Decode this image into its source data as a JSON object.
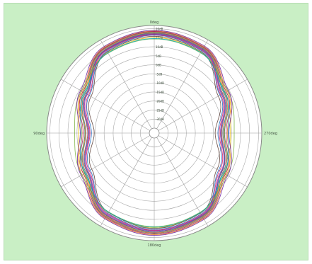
{
  "chart_data": {
    "type": "polar-line",
    "title": "",
    "angle_labels": [
      {
        "text": "0deg",
        "angle": 0
      },
      {
        "text": "90deg",
        "angle": 90
      },
      {
        "text": "180deg",
        "angle": 180
      },
      {
        "text": "270deg",
        "angle": 270
      }
    ],
    "radial_labels": [
      "-30dB",
      "-25dB",
      "-20dB",
      "-15dB",
      "-10dB",
      "-5dB",
      "0dB",
      "5dB",
      "10dB",
      "15dB",
      "20dB"
    ],
    "radial_range": [
      -35,
      20
    ],
    "angle_step_deg": 30,
    "grid": true,
    "colors": [
      "#c0392b",
      "#2e7d32",
      "#1565c0",
      "#e67e22",
      "#8e24aa",
      "#f1c40f",
      "#00838f",
      "#ad1457",
      "#5d4037",
      "#3949ab",
      "#7cb342",
      "#ff7043",
      "#6a1b9a",
      "#00acc1",
      "#d81b60"
    ],
    "series": [
      {
        "points": [
          [
            0,
            15.8
          ],
          [
            30,
            14.2
          ],
          [
            60,
            4.5
          ],
          [
            90,
            -2.0
          ],
          [
            120,
            4.0
          ],
          [
            150,
            13.5
          ],
          [
            180,
            15.2
          ],
          [
            210,
            13.8
          ],
          [
            240,
            4.2
          ],
          [
            270,
            -1.5
          ],
          [
            300,
            4.8
          ],
          [
            330,
            14.5
          ]
        ]
      },
      {
        "points": [
          [
            0,
            16.5
          ],
          [
            30,
            15.0
          ],
          [
            60,
            6.0
          ],
          [
            90,
            -0.5
          ],
          [
            120,
            5.5
          ],
          [
            150,
            14.2
          ],
          [
            180,
            16.0
          ],
          [
            210,
            14.5
          ],
          [
            240,
            5.8
          ],
          [
            270,
            0.0
          ],
          [
            300,
            6.2
          ],
          [
            330,
            15.2
          ]
        ]
      },
      {
        "points": [
          [
            0,
            14.8
          ],
          [
            30,
            13.0
          ],
          [
            60,
            2.5
          ],
          [
            90,
            -4.0
          ],
          [
            120,
            2.0
          ],
          [
            150,
            12.0
          ],
          [
            180,
            14.0
          ],
          [
            210,
            12.5
          ],
          [
            240,
            2.2
          ],
          [
            270,
            -3.5
          ],
          [
            300,
            3.0
          ],
          [
            330,
            13.2
          ]
        ]
      },
      {
        "points": [
          [
            0,
            17.0
          ],
          [
            30,
            15.6
          ],
          [
            60,
            7.2
          ],
          [
            90,
            1.0
          ],
          [
            120,
            7.0
          ],
          [
            150,
            15.0
          ],
          [
            180,
            16.8
          ],
          [
            210,
            15.4
          ],
          [
            240,
            7.0
          ],
          [
            270,
            1.5
          ],
          [
            300,
            7.5
          ],
          [
            330,
            15.8
          ]
        ]
      },
      {
        "points": [
          [
            0,
            15.2
          ],
          [
            30,
            13.8
          ],
          [
            60,
            3.8
          ],
          [
            90,
            -2.8
          ],
          [
            120,
            3.2
          ],
          [
            150,
            12.8
          ],
          [
            180,
            14.6
          ],
          [
            210,
            13.2
          ],
          [
            240,
            3.6
          ],
          [
            270,
            -2.2
          ],
          [
            300,
            4.0
          ],
          [
            330,
            13.9
          ]
        ]
      },
      {
        "points": [
          [
            0,
            13.5
          ],
          [
            30,
            12.2
          ],
          [
            60,
            6.5
          ],
          [
            90,
            3.0
          ],
          [
            120,
            6.0
          ],
          [
            150,
            11.5
          ],
          [
            180,
            13.0
          ],
          [
            210,
            11.8
          ],
          [
            240,
            6.2
          ],
          [
            270,
            3.2
          ],
          [
            300,
            6.8
          ],
          [
            330,
            12.4
          ]
        ]
      },
      {
        "points": [
          [
            0,
            16.0
          ],
          [
            30,
            14.6
          ],
          [
            60,
            5.0
          ],
          [
            90,
            -1.0
          ],
          [
            120,
            4.6
          ],
          [
            150,
            13.9
          ],
          [
            180,
            15.6
          ],
          [
            210,
            14.1
          ],
          [
            240,
            4.8
          ],
          [
            270,
            -0.8
          ],
          [
            300,
            5.4
          ],
          [
            330,
            14.8
          ]
        ]
      },
      {
        "points": [
          [
            0,
            16.8
          ],
          [
            30,
            15.3
          ],
          [
            60,
            6.6
          ],
          [
            90,
            0.4
          ],
          [
            120,
            6.2
          ],
          [
            150,
            14.6
          ],
          [
            180,
            16.4
          ],
          [
            210,
            15.0
          ],
          [
            240,
            6.4
          ],
          [
            270,
            0.8
          ],
          [
            300,
            6.9
          ],
          [
            330,
            15.5
          ]
        ]
      },
      {
        "points": [
          [
            0,
            14.2
          ],
          [
            30,
            12.6
          ],
          [
            60,
            1.5
          ],
          [
            90,
            -5.5
          ],
          [
            120,
            1.0
          ],
          [
            150,
            11.4
          ],
          [
            180,
            13.4
          ],
          [
            210,
            11.9
          ],
          [
            240,
            1.2
          ],
          [
            270,
            -5.0
          ],
          [
            300,
            2.0
          ],
          [
            330,
            12.7
          ]
        ]
      },
      {
        "points": [
          [
            0,
            15.5
          ],
          [
            30,
            14.0
          ],
          [
            60,
            4.2
          ],
          [
            90,
            -2.4
          ],
          [
            120,
            3.6
          ],
          [
            150,
            13.2
          ],
          [
            180,
            15.0
          ],
          [
            210,
            13.5
          ],
          [
            240,
            4.0
          ],
          [
            270,
            -1.9
          ],
          [
            300,
            4.4
          ],
          [
            330,
            14.2
          ]
        ]
      },
      {
        "points": [
          [
            0,
            12.8
          ],
          [
            30,
            11.8
          ],
          [
            60,
            7.5
          ],
          [
            90,
            5.0
          ],
          [
            120,
            7.2
          ],
          [
            150,
            11.2
          ],
          [
            180,
            12.5
          ],
          [
            210,
            11.4
          ],
          [
            240,
            7.4
          ],
          [
            270,
            5.2
          ],
          [
            300,
            7.8
          ],
          [
            330,
            12.0
          ]
        ]
      },
      {
        "points": [
          [
            0,
            16.2
          ],
          [
            30,
            14.8
          ],
          [
            60,
            5.4
          ],
          [
            90,
            -0.8
          ],
          [
            120,
            5.0
          ],
          [
            150,
            14.0
          ],
          [
            180,
            15.8
          ],
          [
            210,
            14.3
          ],
          [
            240,
            5.2
          ],
          [
            270,
            -0.4
          ],
          [
            300,
            5.7
          ],
          [
            330,
            15.0
          ]
        ]
      },
      {
        "points": [
          [
            0,
            17.4
          ],
          [
            30,
            16.0
          ],
          [
            60,
            8.0
          ],
          [
            90,
            2.0
          ],
          [
            120,
            7.6
          ],
          [
            150,
            15.4
          ],
          [
            180,
            17.2
          ],
          [
            210,
            15.8
          ],
          [
            240,
            7.8
          ],
          [
            270,
            2.4
          ],
          [
            300,
            8.2
          ],
          [
            330,
            16.2
          ]
        ]
      },
      {
        "points": [
          [
            0,
            13.0
          ],
          [
            30,
            12.0
          ],
          [
            60,
            5.5
          ],
          [
            90,
            1.5
          ],
          [
            120,
            5.2
          ],
          [
            150,
            11.3
          ],
          [
            180,
            12.8
          ],
          [
            210,
            11.6
          ],
          [
            240,
            5.4
          ],
          [
            270,
            2.0
          ],
          [
            300,
            5.9
          ],
          [
            330,
            12.2
          ]
        ]
      },
      {
        "points": [
          [
            0,
            15.0
          ],
          [
            30,
            13.5
          ],
          [
            60,
            3.0
          ],
          [
            90,
            -3.2
          ],
          [
            120,
            2.6
          ],
          [
            150,
            12.4
          ],
          [
            180,
            14.4
          ],
          [
            210,
            12.9
          ],
          [
            240,
            2.8
          ],
          [
            270,
            -2.8
          ],
          [
            300,
            3.4
          ],
          [
            330,
            13.6
          ]
        ]
      }
    ]
  }
}
